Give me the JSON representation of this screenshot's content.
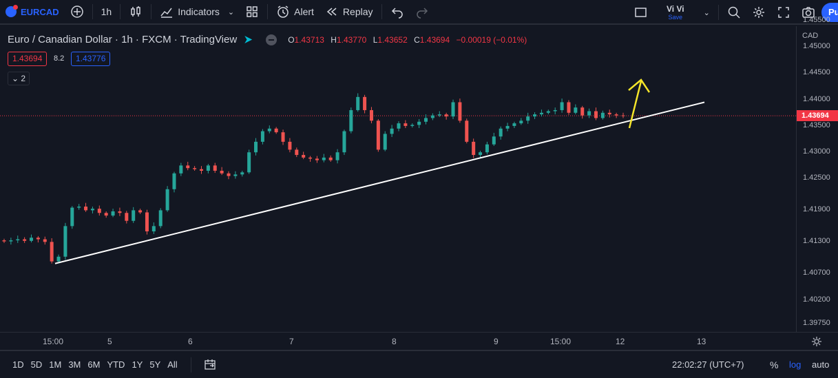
{
  "header": {
    "symbol": "EURCAD",
    "interval": "1h",
    "indicators_label": "Indicators",
    "alert_label": "Alert",
    "replay_label": "Replay",
    "user_name": "Vi Vi",
    "user_save": "Save",
    "publish_label": "Pu"
  },
  "legend": {
    "title": "Euro / Canadian Dollar · 1h · FXCM · TradingView",
    "o_key": "O",
    "o_val": "1.43713",
    "h_key": "H",
    "h_val": "1.43770",
    "l_key": "L",
    "l_val": "1.43652",
    "c_key": "C",
    "c_val": "1.43694",
    "change": "−0.00019 (−0.01%)",
    "bid": "1.43694",
    "spread": "8.2",
    "ask": "1.43776",
    "collapsed_count": "2"
  },
  "price_axis": {
    "currency": "CAD",
    "ticks": [
      "1.45500",
      "1.45000",
      "1.44500",
      "1.44000",
      "1.43500",
      "1.43000",
      "1.42500",
      "1.41900",
      "1.41300",
      "1.40700",
      "1.40200",
      "1.39750"
    ],
    "current": "1.43694"
  },
  "time_axis": {
    "ticks": [
      "15:00",
      "5",
      "6",
      "7",
      "8",
      "9",
      "15:00",
      "12",
      "13"
    ]
  },
  "bottom_bar": {
    "ranges": [
      "1D",
      "5D",
      "1M",
      "3M",
      "6M",
      "YTD",
      "1Y",
      "5Y",
      "All"
    ],
    "clock": "22:02:27 (UTC+7)",
    "percent_label": "%",
    "log_label": "log",
    "auto_label": "auto"
  },
  "colors": {
    "background": "#131722",
    "up": "#26a69a",
    "down": "#ef5350",
    "accent": "#2962ff",
    "trendline": "#ffffff",
    "arrow": "#f5e52a"
  },
  "chart_data": {
    "type": "candlestick",
    "symbol": "EURCAD",
    "interval": "1h",
    "ylim": [
      1.3975,
      1.4555
    ],
    "x": [
      "15:00",
      "5",
      "6",
      "7",
      "8",
      "9",
      "15:00",
      "12",
      "13"
    ],
    "close_series": [
      1.4131,
      1.4133,
      1.4135,
      1.4132,
      1.4138,
      1.4135,
      1.413,
      1.4093,
      1.4102,
      1.416,
      1.4195,
      1.4197,
      1.419,
      1.4193,
      1.4185,
      1.418,
      1.4188,
      1.4185,
      1.417,
      1.419,
      1.4186,
      1.415,
      1.416,
      1.419,
      1.423,
      1.426,
      1.4275,
      1.427,
      1.4268,
      1.4265,
      1.4275,
      1.4265,
      1.426,
      1.4255,
      1.4258,
      1.4262,
      1.43,
      1.432,
      1.434,
      1.4345,
      1.4338,
      1.432,
      1.4305,
      1.4295,
      1.429,
      1.4288,
      1.4285,
      1.429,
      1.4285,
      1.43,
      1.434,
      1.438,
      1.4405,
      1.438,
      1.436,
      1.4305,
      1.4335,
      1.4345,
      1.4355,
      1.435,
      1.4352,
      1.4358,
      1.4365,
      1.437,
      1.4372,
      1.4368,
      1.4395,
      1.436,
      1.432,
      1.4295,
      1.43,
      1.4315,
      1.433,
      1.4345,
      1.435,
      1.4355,
      1.436,
      1.4368,
      1.4372,
      1.4375,
      1.4378,
      1.438,
      1.4395,
      1.4375,
      1.4385,
      1.437,
      1.4378,
      1.4365,
      1.4375,
      1.4372,
      1.437,
      1.4369
    ],
    "trendline": {
      "start_price": 1.4089,
      "end_price": 1.4395
    },
    "annotation": "up-arrow"
  }
}
